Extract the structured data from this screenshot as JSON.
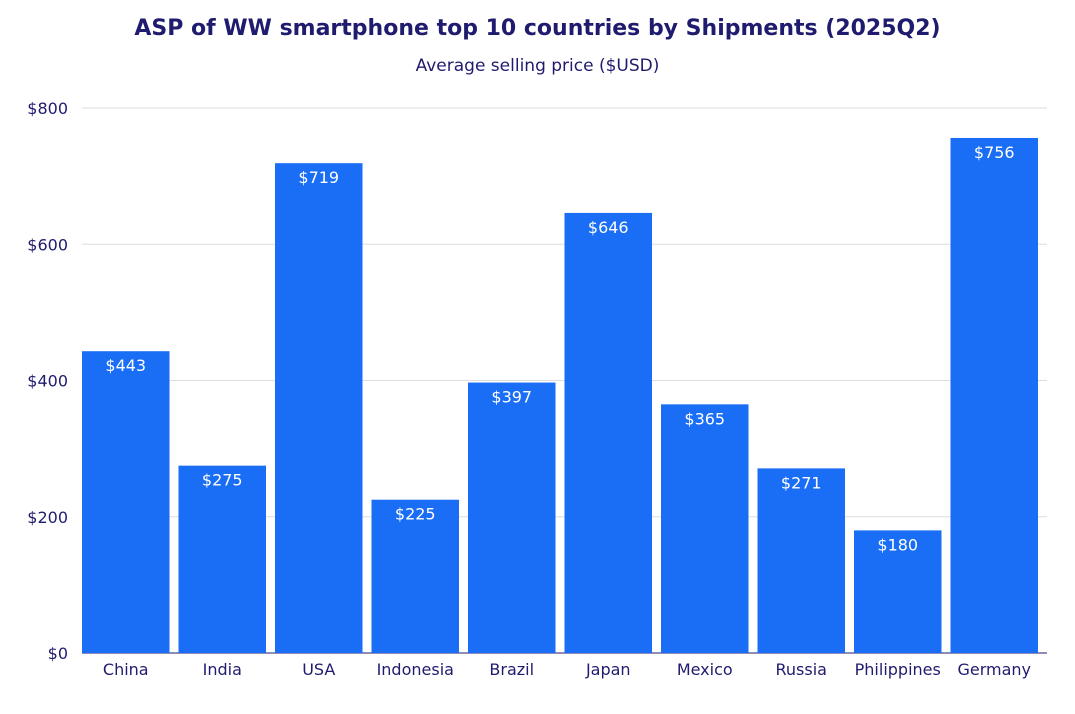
{
  "chart_data": {
    "type": "bar",
    "title": "ASP of WW smartphone top 10 countries by Shipments (2025Q2)",
    "subtitle": "Average selling price ($USD)",
    "xlabel": "",
    "ylabel": "",
    "categories": [
      "China",
      "India",
      "USA",
      "Indonesia",
      "Brazil",
      "Japan",
      "Mexico",
      "Russia",
      "Philippines",
      "Germany"
    ],
    "values": [
      443,
      275,
      719,
      225,
      397,
      646,
      365,
      271,
      180,
      756
    ],
    "data_labels": [
      "$443",
      "$275",
      "$719",
      "$225",
      "$397",
      "$646",
      "$365",
      "$271",
      "$180",
      "$756"
    ],
    "ylim": [
      0,
      800
    ],
    "yticks": [
      0,
      200,
      400,
      600,
      800
    ],
    "ytick_labels": [
      "$0",
      "$200",
      "$400",
      "$600",
      "$800"
    ],
    "grid": true,
    "legend": "none",
    "bar_color": "#1a6df5",
    "text_color": "#1f1b6e",
    "label_color": "#ffffff",
    "grid_color": "#dddddd"
  }
}
